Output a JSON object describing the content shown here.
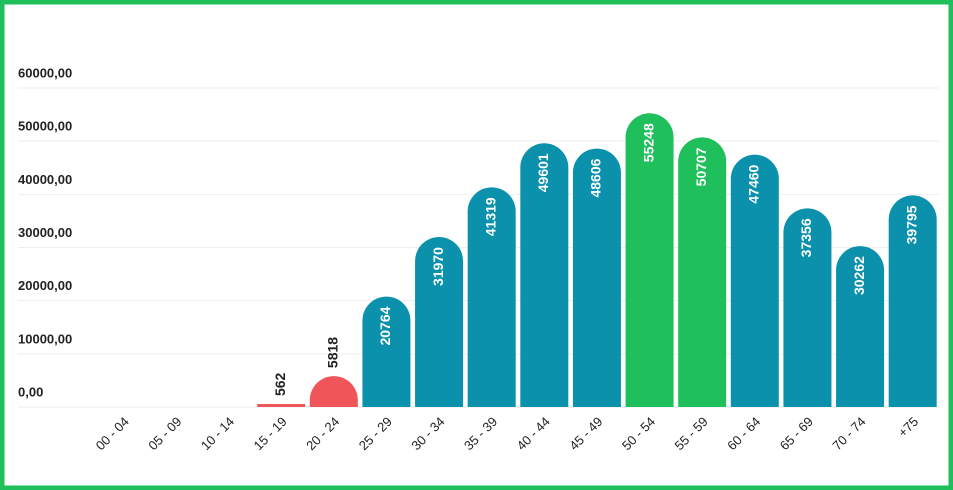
{
  "chart_data": {
    "type": "bar",
    "categories": [
      "00 - 04",
      "05 - 09",
      "10 - 14",
      "15 - 19",
      "20 - 24",
      "25 - 29",
      "30 - 34",
      "35 - 39",
      "40 - 44",
      "45 - 49",
      "50 - 54",
      "55 - 59",
      "60 - 64",
      "65 - 69",
      "70 - 74",
      "+75"
    ],
    "values": [
      null,
      null,
      null,
      562,
      5818,
      20764,
      31970,
      41319,
      49601,
      48606,
      55248,
      50707,
      47460,
      37356,
      30262,
      39795
    ],
    "colors": [
      "#0b91ab",
      "#0b91ab",
      "#0b91ab",
      "#f0555a",
      "#f0555a",
      "#0b91ab",
      "#0b91ab",
      "#0b91ab",
      "#0b91ab",
      "#0b91ab",
      "#1fbf5c",
      "#1fbf5c",
      "#0b91ab",
      "#0b91ab",
      "#0b91ab",
      "#0b91ab"
    ],
    "ylim": [
      0,
      60000
    ],
    "yticks": [
      {
        "value": 0,
        "label": "0,00"
      },
      {
        "value": 10000,
        "label": "10000,00"
      },
      {
        "value": 20000,
        "label": "20000,00"
      },
      {
        "value": 30000,
        "label": "30000,00"
      },
      {
        "value": 40000,
        "label": "40000,00"
      },
      {
        "value": 50000,
        "label": "50000,00"
      },
      {
        "value": 60000,
        "label": "60000,00"
      }
    ],
    "grid": true
  }
}
